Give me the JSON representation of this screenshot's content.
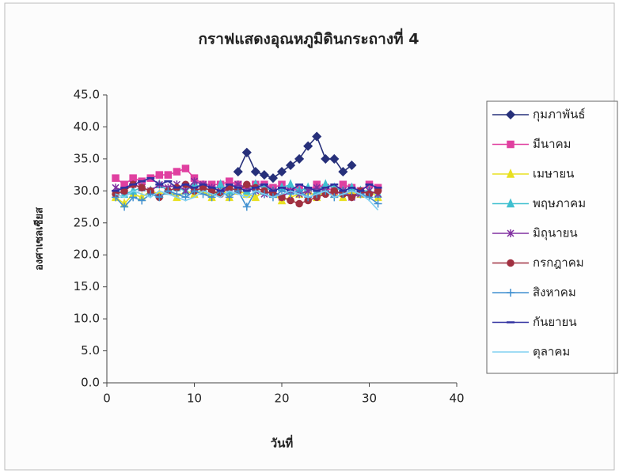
{
  "chart_data": {
    "type": "line",
    "title": "กราฟแสดงอุณหภูมิดินกระถางที่ 4",
    "x_label": "วันที่",
    "y_label": "องศาเซลเซียส",
    "x": [
      1,
      2,
      3,
      4,
      5,
      6,
      7,
      8,
      9,
      10,
      11,
      12,
      13,
      14,
      15,
      16,
      17,
      18,
      19,
      20,
      21,
      22,
      23,
      24,
      25,
      26,
      27,
      28,
      29,
      30,
      31
    ],
    "xlim": [
      0,
      40
    ],
    "xticks": [
      0,
      10,
      20,
      30,
      40
    ],
    "ylim": [
      0,
      45
    ],
    "yticks": [
      {
        "value": 0,
        "label": "0.0"
      },
      {
        "value": 5,
        "label": "5.0"
      },
      {
        "value": 10,
        "label": "10.0"
      },
      {
        "value": 15,
        "label": "15.0"
      },
      {
        "value": 20,
        "label": "20.0"
      },
      {
        "value": 25,
        "label": "25.0"
      },
      {
        "value": 30,
        "label": "30.0"
      },
      {
        "value": 35,
        "label": "35.0"
      },
      {
        "value": 40,
        "label": "40.0"
      },
      {
        "value": 45,
        "label": "45.0"
      }
    ],
    "series": [
      {
        "name": "กุมภาพันธ์",
        "color": "#27307a",
        "marker": "diamond",
        "values": [
          null,
          null,
          null,
          null,
          null,
          null,
          null,
          null,
          null,
          null,
          null,
          null,
          null,
          null,
          33,
          36,
          33,
          32.5,
          32,
          33,
          34,
          35,
          37,
          38.5,
          35,
          35,
          33,
          34,
          null,
          null,
          null
        ]
      },
      {
        "name": "มีนาคม",
        "color": "#e040a0",
        "marker": "square",
        "values": [
          32,
          31,
          32,
          31.5,
          32,
          32.5,
          32.5,
          33,
          33.5,
          32,
          31,
          31,
          31,
          31.5,
          31,
          30.5,
          31,
          31,
          30.5,
          31,
          30,
          30.5,
          30,
          31,
          30.5,
          30,
          31,
          30.5,
          30,
          31,
          30.5
        ]
      },
      {
        "name": "เมษายน",
        "color": "#e8e020",
        "marker": "triangle",
        "values": [
          29,
          28,
          29.5,
          29,
          30,
          29.5,
          30,
          29,
          30,
          29.5,
          30,
          29,
          30.5,
          29,
          30,
          29.5,
          29,
          30,
          29.5,
          28.5,
          29,
          29.5,
          30,
          29,
          30,
          29.5,
          29,
          30,
          29.5,
          30,
          29
        ]
      },
      {
        "name": "พฤษภาคม",
        "color": "#40c0d0",
        "marker": "triangle",
        "values": [
          30,
          29.5,
          30,
          30.5,
          30,
          31,
          30,
          30.5,
          30,
          31,
          30.5,
          30,
          31,
          30,
          30.5,
          30,
          31,
          30.5,
          30,
          30.5,
          31,
          30,
          30.5,
          30,
          31,
          30.5,
          30,
          30.5,
          30,
          30,
          29.5
        ]
      },
      {
        "name": "มิถุนายน",
        "color": "#8030a0",
        "marker": "star",
        "values": [
          30.5,
          30,
          31,
          30.5,
          30,
          31,
          30.5,
          31,
          30,
          31.5,
          31,
          30.5,
          30,
          30.5,
          31,
          30.5,
          30,
          29.5,
          30,
          29,
          30,
          29.5,
          30,
          30.5,
          30,
          29.5,
          30,
          29,
          29.5,
          30,
          29.5
        ]
      },
      {
        "name": "กรกฎาคม",
        "color": "#a03040",
        "marker": "circle",
        "values": [
          29.5,
          30,
          31,
          30.5,
          30,
          29,
          30,
          30.5,
          31,
          30,
          30.5,
          30,
          29.5,
          30.5,
          30,
          31,
          30.5,
          30,
          29.5,
          29,
          28.5,
          28,
          28.5,
          29,
          29.5,
          30,
          29.5,
          29,
          30,
          29.5,
          30
        ]
      },
      {
        "name": "สิงหาคม",
        "color": "#4090d0",
        "marker": "plus",
        "values": [
          29,
          27.5,
          29,
          28.5,
          29.5,
          29,
          30,
          29.5,
          29,
          30,
          29.5,
          29,
          30,
          29,
          30,
          27.5,
          30,
          29.5,
          29,
          30,
          29.5,
          30,
          29,
          29.5,
          30,
          29,
          29.5,
          30,
          29.5,
          29,
          28
        ]
      },
      {
        "name": "กันยายน",
        "color": "#3030a0",
        "marker": "dash",
        "values": [
          30,
          30.5,
          31,
          31.5,
          32,
          31,
          31.5,
          30.5,
          31,
          30.5,
          31,
          30.5,
          30,
          31,
          30.5,
          30,
          30.5,
          31,
          30,
          30.5,
          30,
          31,
          30.5,
          30,
          30.5,
          31,
          30,
          30.5,
          30,
          31,
          30.5
        ]
      },
      {
        "name": "ตุลาคม",
        "color": "#80d0f0",
        "marker": "none",
        "values": [
          29.5,
          29,
          30,
          29.5,
          29,
          30,
          29.5,
          29,
          28.5,
          29,
          30,
          29.5,
          29,
          30,
          29.5,
          29,
          30,
          29.5,
          29,
          29.5,
          30,
          29.5,
          29,
          29.5,
          30,
          29,
          29.5,
          30,
          29.5,
          28.5,
          27
        ]
      }
    ]
  }
}
